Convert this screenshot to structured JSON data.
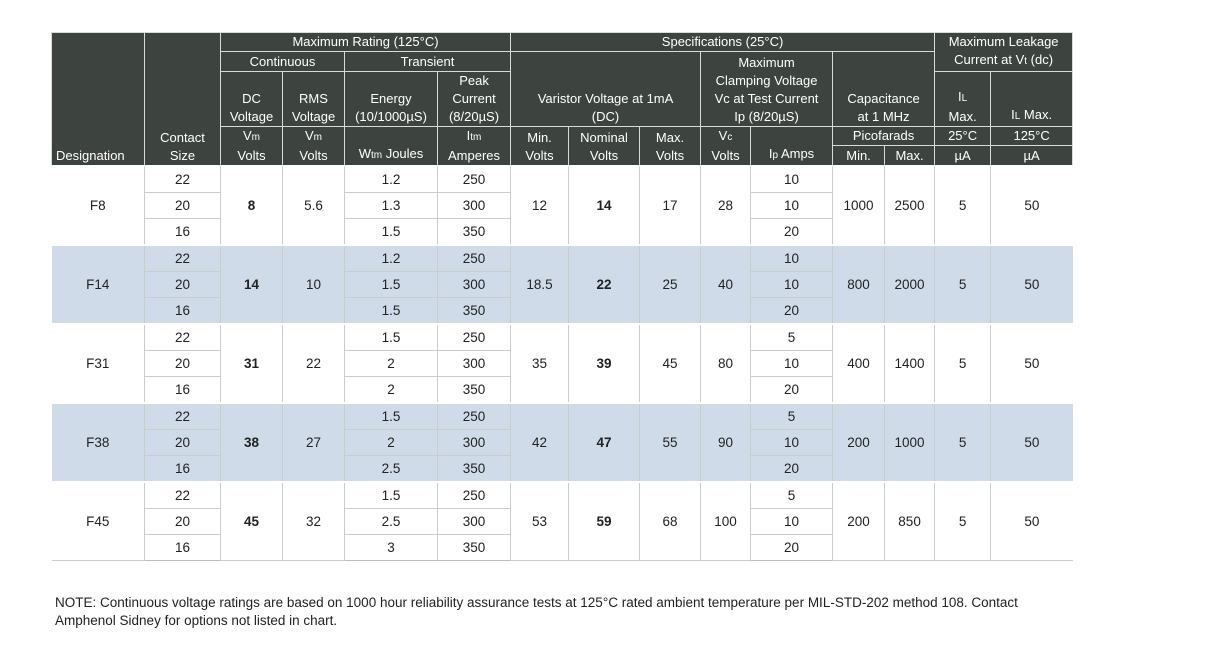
{
  "header": {
    "designation": "Designation",
    "contact_size": [
      "Contact",
      "Size"
    ],
    "max_rating": "Maximum Rating (125°C)",
    "specifications": "Specifications (25°C)",
    "max_leakage": [
      "Maximum Leakage",
      "Current at V",
      "t",
      " (dc)"
    ],
    "continuous": "Continuous",
    "transient": "Transient",
    "dc_voltage": [
      "DC",
      "Voltage"
    ],
    "rms_voltage": [
      "RMS",
      "Voltage"
    ],
    "energy": [
      "Energy",
      "(10/1000µS)"
    ],
    "peak_current": [
      "Peak",
      "Current",
      "(8/20µS)"
    ],
    "varistor_voltage": [
      "Varistor Voltage at 1mA",
      "(DC)"
    ],
    "max_clamping": [
      "Maximum",
      "Clamping Voltage",
      "Vc at Test Current",
      "Ip (8/20µS)"
    ],
    "capacitance": [
      "Capacitance",
      "at 1 MHz"
    ],
    "il_max": [
      "I",
      "L",
      "Max."
    ],
    "il_max2": [
      "I",
      "L",
      " Max."
    ],
    "picofarads": "Picofarads",
    "temp_25": "25°C",
    "temp_125": "125°C",
    "units": {
      "vm1": [
        "V",
        "m",
        "Volts"
      ],
      "vm2": [
        "V",
        "m",
        "Volts"
      ],
      "wtm": [
        "W",
        "tm",
        " Joules"
      ],
      "itm": [
        "I",
        "tm",
        "Amperes"
      ],
      "min_volts": [
        "Min.",
        "Volts"
      ],
      "nominal_volts": [
        "Nominal",
        "Volts"
      ],
      "max_volts": [
        "Max.",
        "Volts"
      ],
      "vc_volts": [
        "V",
        "c",
        "Volts"
      ],
      "ip_amps": [
        "I",
        "p",
        " Amps"
      ],
      "cap_min": "Min.",
      "cap_max": "Max.",
      "ua1": "µA",
      "ua2": "µA"
    }
  },
  "groups": [
    {
      "designation": "F8",
      "dc": "8",
      "rms": "5.6",
      "min": "12",
      "nominal": "14",
      "max": "17",
      "vc": "28",
      "cap_min": "1000",
      "cap_max": "2500",
      "il25": "5",
      "il125": "50",
      "rows": [
        {
          "size": "22",
          "energy": "1.2",
          "peak": "250",
          "ip": "10"
        },
        {
          "size": "20",
          "energy": "1.3",
          "peak": "300",
          "ip": "10"
        },
        {
          "size": "16",
          "energy": "1.5",
          "peak": "350",
          "ip": "20"
        }
      ]
    },
    {
      "designation": "F14",
      "dc": "14",
      "rms": "10",
      "min": "18.5",
      "nominal": "22",
      "max": "25",
      "vc": "40",
      "cap_min": "800",
      "cap_max": "2000",
      "il25": "5",
      "il125": "50",
      "rows": [
        {
          "size": "22",
          "energy": "1.2",
          "peak": "250",
          "ip": "10"
        },
        {
          "size": "20",
          "energy": "1.5",
          "peak": "300",
          "ip": "10"
        },
        {
          "size": "16",
          "energy": "1.5",
          "peak": "350",
          "ip": "20"
        }
      ]
    },
    {
      "designation": "F31",
      "dc": "31",
      "rms": "22",
      "min": "35",
      "nominal": "39",
      "max": "45",
      "vc": "80",
      "cap_min": "400",
      "cap_max": "1400",
      "il25": "5",
      "il125": "50",
      "rows": [
        {
          "size": "22",
          "energy": "1.5",
          "peak": "250",
          "ip": "5"
        },
        {
          "size": "20",
          "energy": "2",
          "peak": "300",
          "ip": "10"
        },
        {
          "size": "16",
          "energy": "2",
          "peak": "350",
          "ip": "20"
        }
      ]
    },
    {
      "designation": "F38",
      "dc": "38",
      "rms": "27",
      "min": "42",
      "nominal": "47",
      "max": "55",
      "vc": "90",
      "cap_min": "200",
      "cap_max": "1000",
      "il25": "5",
      "il125": "50",
      "rows": [
        {
          "size": "22",
          "energy": "1.5",
          "peak": "250",
          "ip": "5"
        },
        {
          "size": "20",
          "energy": "2",
          "peak": "300",
          "ip": "10"
        },
        {
          "size": "16",
          "energy": "2.5",
          "peak": "350",
          "ip": "20"
        }
      ]
    },
    {
      "designation": "F45",
      "dc": "45",
      "rms": "32",
      "min": "53",
      "nominal": "59",
      "max": "68",
      "vc": "100",
      "cap_min": "200",
      "cap_max": "850",
      "il25": "5",
      "il125": "50",
      "rows": [
        {
          "size": "22",
          "energy": "1.5",
          "peak": "250",
          "ip": "5"
        },
        {
          "size": "20",
          "energy": "2.5",
          "peak": "300",
          "ip": "10"
        },
        {
          "size": "16",
          "energy": "3",
          "peak": "350",
          "ip": "20"
        }
      ]
    }
  ],
  "note": "NOTE: Continuous voltage ratings are based on 1000 hour reliability assurance tests at 125°C rated ambient temperature per MIL-STD-202 method 108. Contact Amphenol Sidney for options not listed in chart.",
  "colors": {
    "header_bg": "#3d4440",
    "shaded_row": "#cfdbe9"
  }
}
